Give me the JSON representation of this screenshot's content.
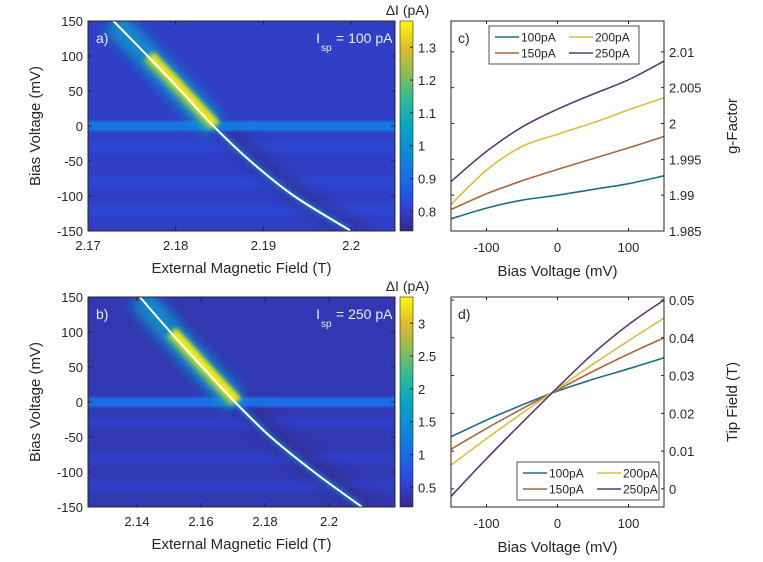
{
  "chart_data": [
    {
      "id": "a",
      "type": "heatmap",
      "panel_label": "a)",
      "annotation": {
        "main": "I",
        "sub": "sp",
        "rest": " = 100 pA"
      },
      "xlabel": "External Magnetic Field (T)",
      "ylabel": "Bias Voltage (mV)",
      "xlim": [
        2.17,
        2.205
      ],
      "ylim": [
        -150,
        150
      ],
      "xticks": [
        2.17,
        2.18,
        2.19,
        2.2
      ],
      "xtick_labels": [
        "2.17",
        "2.18",
        "2.19",
        "2.2"
      ],
      "yticks": [
        150,
        100,
        50,
        0,
        -50,
        -100,
        -150
      ],
      "ytick_labels": [
        "150",
        "100",
        "50",
        "0",
        "-50",
        "-100",
        "-150"
      ],
      "colorbar": {
        "label": "ΔI (pA)",
        "range": [
          0.74,
          1.38
        ],
        "ticks": [
          1.3,
          1.2,
          1.1,
          1,
          0.9,
          0.8
        ],
        "tick_labels": [
          "1.3",
          "1.2",
          "1.1",
          "1",
          "0.9",
          "0.8"
        ],
        "colormap": "parula"
      },
      "resonance_line": {
        "x": [
          2.1729,
          2.1768,
          2.1806,
          2.1843,
          2.1885,
          2.1935,
          2.2
        ],
        "y": [
          150,
          100,
          50,
          0,
          -50,
          -100,
          -150
        ],
        "color": "#ffffff"
      },
      "features": [
        {
          "kind": "peak-ridge",
          "along": "resonance_line",
          "y_range": [
            0,
            150
          ],
          "max_at_y": 50,
          "peak_value": 1.35
        },
        {
          "kind": "horizontal-band",
          "y": 0,
          "value": 0.93
        }
      ],
      "background_value": 0.8
    },
    {
      "id": "b",
      "type": "heatmap",
      "panel_label": "b)",
      "annotation": {
        "main": "I",
        "sub": "sp",
        "rest": " = 250 pA"
      },
      "xlabel": "External Magnetic Field (T)",
      "ylabel": "Bias Voltage (mV)",
      "xlim": [
        2.1247,
        2.2206
      ],
      "ylim": [
        -150,
        150
      ],
      "xticks": [
        2.14,
        2.16,
        2.18,
        2.2
      ],
      "xtick_labels": [
        "2.14",
        "2.16",
        "2.18",
        "2.2"
      ],
      "yticks": [
        150,
        100,
        50,
        0,
        -50,
        -100,
        -150
      ],
      "ytick_labels": [
        "150",
        "100",
        "50",
        "0",
        "-50",
        "-100",
        "-150"
      ],
      "colorbar": {
        "label": "ΔI (pA)",
        "range": [
          0.2,
          3.4
        ],
        "ticks": [
          3,
          2.5,
          2,
          1.5,
          1,
          0.5
        ],
        "tick_labels": [
          "3",
          "2.5",
          "2",
          "1.5",
          "1",
          "0.5"
        ],
        "colormap": "parula"
      },
      "resonance_line": {
        "x": [
          2.1409,
          2.1504,
          2.1604,
          2.1706,
          2.1818,
          2.1953,
          2.2103
        ],
        "y": [
          150,
          100,
          50,
          0,
          -50,
          -100,
          -150
        ],
        "color": "#ffffff"
      },
      "features": [
        {
          "kind": "peak-ridge",
          "along": "resonance_line",
          "y_range": [
            0,
            150
          ],
          "max_at_y": 50,
          "peak_value": 3.3
        },
        {
          "kind": "horizontal-band",
          "y": 0,
          "value": 1.0
        }
      ],
      "background_value": 0.4
    },
    {
      "id": "c",
      "type": "line",
      "panel_label": "c)",
      "xlabel": "Bias Voltage (mV)",
      "ylabel": "g-Factor",
      "xlim": [
        -150,
        150
      ],
      "ylim": [
        1.985,
        2.0143
      ],
      "xticks": [
        -100,
        0,
        100
      ],
      "xtick_labels": [
        "-100",
        "0",
        "100"
      ],
      "yticks": [
        1.985,
        1.99,
        1.995,
        2,
        2.005,
        2.01
      ],
      "ytick_labels": [
        "1.985",
        "1.99",
        "1.995",
        "2",
        "2.005",
        "2.01"
      ],
      "legend": {
        "placement": "top",
        "columns": 2
      },
      "x": [
        -150,
        -100,
        -50,
        0,
        50,
        100,
        150
      ],
      "series": [
        {
          "name": "100pA",
          "color": "#1e6f86",
          "values": [
            1.9867,
            1.9882,
            1.9893,
            1.99,
            1.9908,
            1.9916,
            1.9927
          ]
        },
        {
          "name": "150pA",
          "color": "#a9663f",
          "values": [
            1.988,
            1.9902,
            1.992,
            1.9936,
            1.9951,
            1.9966,
            1.9982
          ]
        },
        {
          "name": "200pA",
          "color": "#d8be45",
          "values": [
            1.9887,
            1.9935,
            1.9968,
            1.9985,
            2.0001,
            2.0019,
            2.0036
          ]
        },
        {
          "name": "250pA",
          "color": "#5b3a6e",
          "values": [
            1.9919,
            1.9961,
            1.9995,
            2.002,
            2.0041,
            2.0061,
            2.0087
          ]
        }
      ]
    },
    {
      "id": "d",
      "type": "line",
      "panel_label": "d)",
      "xlabel": "Bias Voltage (mV)",
      "ylabel": "Tip Field (T)",
      "xlim": [
        -150,
        150
      ],
      "ylim": [
        -0.0048,
        0.0508
      ],
      "xticks": [
        -100,
        0,
        100
      ],
      "xtick_labels": [
        "-100",
        "0",
        "100"
      ],
      "yticks": [
        0,
        0.01,
        0.02,
        0.03,
        0.04,
        0.05
      ],
      "ytick_labels": [
        "0",
        "0.01",
        "0.02",
        "0.03",
        "0.04",
        "0.05"
      ],
      "legend": {
        "placement": "bottom-right",
        "columns": 2
      },
      "x": [
        -150,
        -100,
        -50,
        0,
        50,
        100,
        150
      ],
      "series": [
        {
          "name": "100pA",
          "color": "#1e6f86",
          "values": [
            0.0138,
            0.0182,
            0.0222,
            0.0259,
            0.029,
            0.0318,
            0.0347
          ]
        },
        {
          "name": "150pA",
          "color": "#a9663f",
          "values": [
            0.0105,
            0.016,
            0.0212,
            0.0262,
            0.0311,
            0.0357,
            0.04
          ]
        },
        {
          "name": "200pA",
          "color": "#d8be45",
          "values": [
            0.0063,
            0.0133,
            0.02,
            0.0265,
            0.033,
            0.0392,
            0.0452
          ]
        },
        {
          "name": "250pA",
          "color": "#5b3a6e",
          "values": [
            -0.002,
            0.008,
            0.0175,
            0.0268,
            0.0358,
            0.0435,
            0.05
          ]
        }
      ]
    }
  ]
}
